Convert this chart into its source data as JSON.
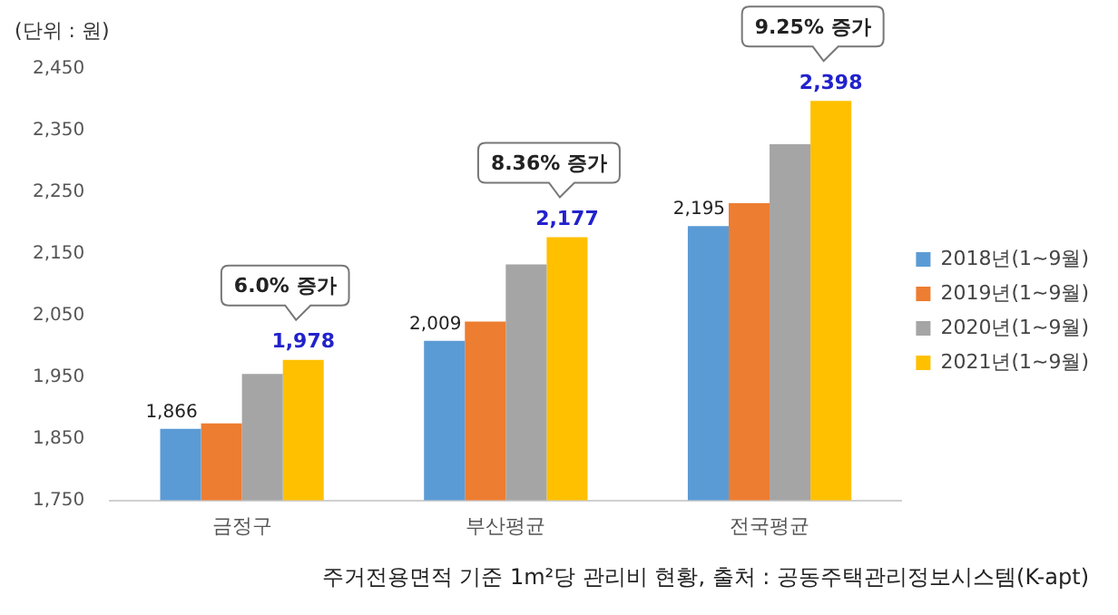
{
  "chart_data": {
    "type": "bar",
    "ylabel": "(단위 : 원)",
    "categories": [
      "금정구",
      "부산평균",
      "전국평균"
    ],
    "series": [
      {
        "name": "2018년(1~9월)",
        "color": "#5b9bd5",
        "values": [
          1866,
          2009,
          2195
        ],
        "value_labels": [
          "1,866",
          "2,009",
          "2,195"
        ]
      },
      {
        "name": "2019년(1~9월)",
        "color": "#ed7d31",
        "values": [
          1875,
          2040,
          2232
        ]
      },
      {
        "name": "2020년(1~9월)",
        "color": "#a5a5a5",
        "values": [
          1955,
          2133,
          2328
        ]
      },
      {
        "name": "2021년(1~9월)",
        "color": "#ffc000",
        "values": [
          1978,
          2177,
          2398
        ],
        "value_labels": [
          "1,978",
          "2,177",
          "2,398"
        ]
      }
    ],
    "ylim": [
      1750,
      2450
    ],
    "yticks": [
      {
        "value": 1750,
        "label": "1,750"
      },
      {
        "value": 1850,
        "label": "1,850"
      },
      {
        "value": 1950,
        "label": "1,950"
      },
      {
        "value": 2050,
        "label": "2,050"
      },
      {
        "value": 2150,
        "label": "2,150"
      },
      {
        "value": 2250,
        "label": "2,250"
      },
      {
        "value": 2350,
        "label": "2,350"
      },
      {
        "value": 2450,
        "label": "2,450"
      }
    ],
    "grid": false,
    "legend": "right",
    "annotations": [
      "6.0% 증가",
      "8.36% 증가",
      "9.25% 증가",
      "주거전용면적 기준 1m²당 관리비 현황, 출처 : 공동주택관리정보시스템(K-apt)"
    ]
  }
}
